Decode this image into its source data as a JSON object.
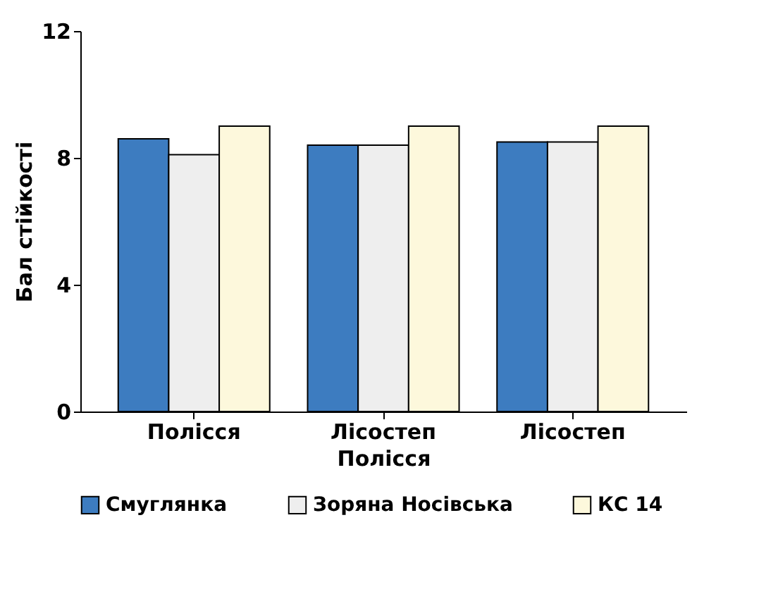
{
  "chart_data": {
    "type": "bar",
    "xlabel": "Полісся",
    "ylabel": "Бал стійкості",
    "categories": [
      "Полісся",
      "Лісостеп",
      "Лісостеп"
    ],
    "series": [
      {
        "name": "Смуглянка",
        "color": "#3d7cc0",
        "values": [
          8.6,
          8.4,
          8.5
        ]
      },
      {
        "name": "Зоряна Носівська",
        "color": "#eeeeee",
        "values": [
          8.1,
          8.4,
          8.5
        ]
      },
      {
        "name": "КС 14",
        "color": "#fdf8dc",
        "values": [
          9.0,
          9.0,
          9.0
        ]
      }
    ],
    "ylim": [
      0,
      12
    ],
    "yticks": [
      0,
      4,
      8,
      12
    ],
    "grid": false,
    "legend": "bottom"
  }
}
